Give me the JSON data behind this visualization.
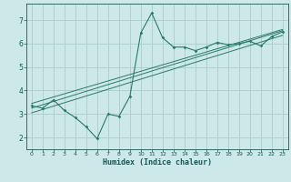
{
  "xlabel": "Humidex (Indice chaleur)",
  "background_color": "#cce8e8",
  "grid_color": "#aacccc",
  "line_color": "#2a7a6a",
  "text_color": "#1a5555",
  "xlim": [
    -0.5,
    23.5
  ],
  "ylim": [
    1.5,
    7.7
  ],
  "xticks": [
    0,
    1,
    2,
    3,
    4,
    5,
    6,
    7,
    8,
    9,
    10,
    11,
    12,
    13,
    14,
    15,
    16,
    17,
    18,
    19,
    20,
    21,
    22,
    23
  ],
  "yticks": [
    2,
    3,
    4,
    5,
    6,
    7
  ],
  "scatter_x": [
    0,
    1,
    2,
    3,
    4,
    5,
    6,
    7,
    8,
    9,
    10,
    11,
    12,
    13,
    14,
    15,
    16,
    17,
    18,
    19,
    20,
    21,
    22,
    23
  ],
  "scatter_y": [
    3.35,
    3.25,
    3.6,
    3.15,
    2.85,
    2.45,
    1.95,
    3.0,
    2.9,
    3.75,
    6.45,
    7.3,
    6.25,
    5.85,
    5.85,
    5.7,
    5.85,
    6.05,
    5.95,
    6.0,
    6.1,
    5.9,
    6.3,
    6.5
  ],
  "reg_lines": [
    [
      [
        0,
        23
      ],
      [
        3.05,
        6.35
      ]
    ],
    [
      [
        0,
        23
      ],
      [
        3.25,
        6.55
      ]
    ],
    [
      [
        0,
        23
      ],
      [
        3.45,
        6.6
      ]
    ]
  ]
}
